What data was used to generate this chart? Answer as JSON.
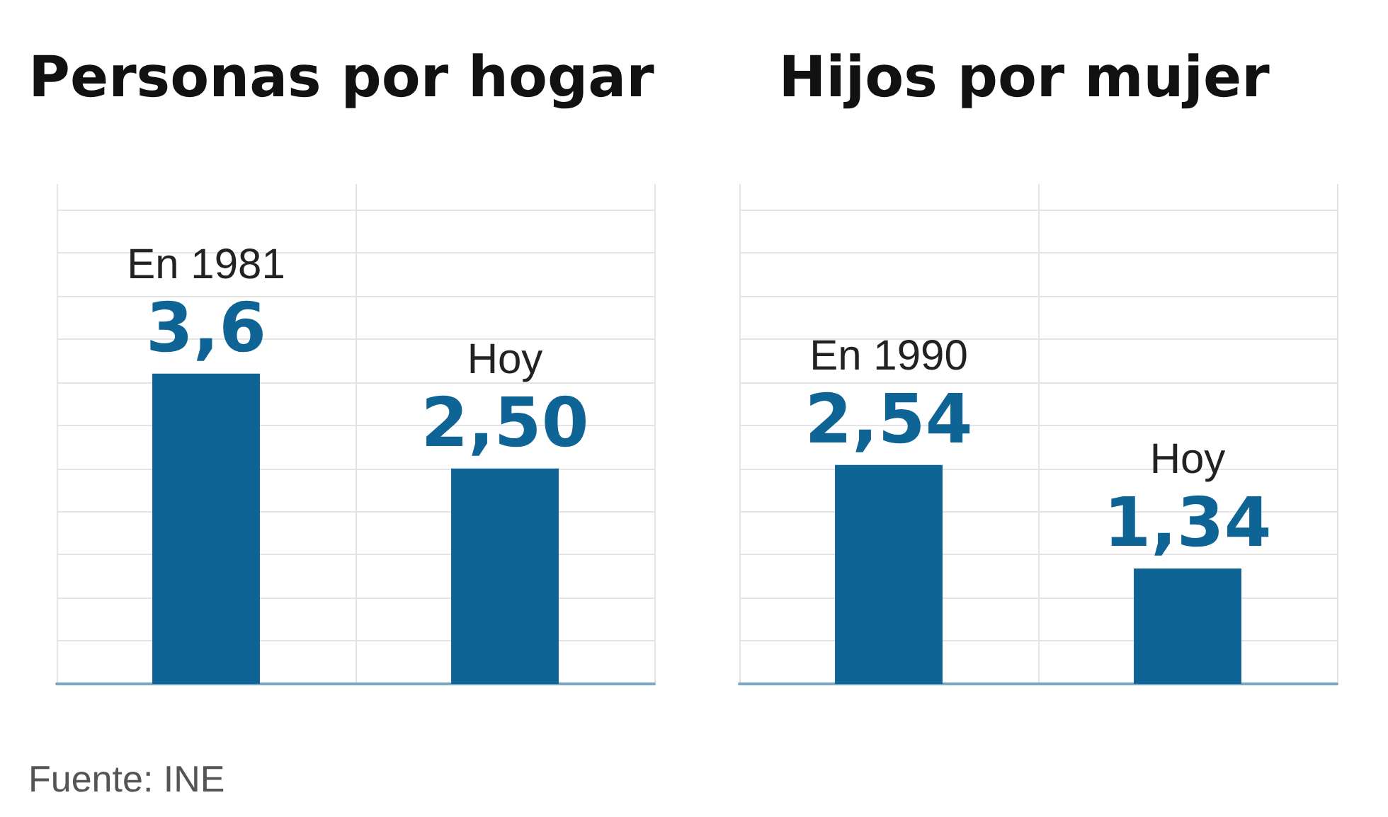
{
  "chart_data": [
    {
      "type": "bar",
      "title": "Personas por hogar",
      "categories": [
        "En 1981",
        "Hoy"
      ],
      "values": [
        3.6,
        2.5
      ],
      "value_labels": [
        "3,6",
        "2,50"
      ],
      "color": "#0f6496",
      "ylim": [
        0,
        5.8
      ],
      "yticks": [
        {
          "value": 0,
          "label": null
        },
        {
          "value": 0.5,
          "label": null
        },
        {
          "value": 1,
          "label": null
        },
        {
          "value": 1.5,
          "label": null
        },
        {
          "value": 2,
          "label": null
        },
        {
          "value": 2.5,
          "label": null
        },
        {
          "value": 3,
          "label": null
        },
        {
          "value": 3.5,
          "label": null
        },
        {
          "value": 4,
          "label": null
        },
        {
          "value": 4.5,
          "label": null
        },
        {
          "value": 5,
          "label": null
        },
        {
          "value": 5.5,
          "label": null
        }
      ],
      "grid": true,
      "tick_labels": "x",
      "annotations": [
        "Fuente: INE"
      ]
    },
    {
      "type": "bar",
      "title": "Hijos por mujer",
      "categories": [
        "En 1990",
        "Hoy"
      ],
      "values": [
        2.54,
        1.34
      ],
      "value_labels": [
        "2,54",
        "1,34"
      ],
      "color": "#0f6496",
      "ylim": [
        0,
        5.8
      ],
      "yticks": [
        {
          "value": 0,
          "label": null
        },
        {
          "value": 0.5,
          "label": null
        },
        {
          "value": 1,
          "label": null
        },
        {
          "value": 1.5,
          "label": null
        },
        {
          "value": 2,
          "label": null
        },
        {
          "value": 2.5,
          "label": null
        },
        {
          "value": 3,
          "label": null
        },
        {
          "value": 3.5,
          "label": null
        },
        {
          "value": 4,
          "label": null
        },
        {
          "value": 4.5,
          "label": null
        },
        {
          "value": 5,
          "label": null
        },
        {
          "value": 5.5,
          "label": null
        }
      ],
      "grid": true,
      "tick_labels": "x"
    }
  ]
}
